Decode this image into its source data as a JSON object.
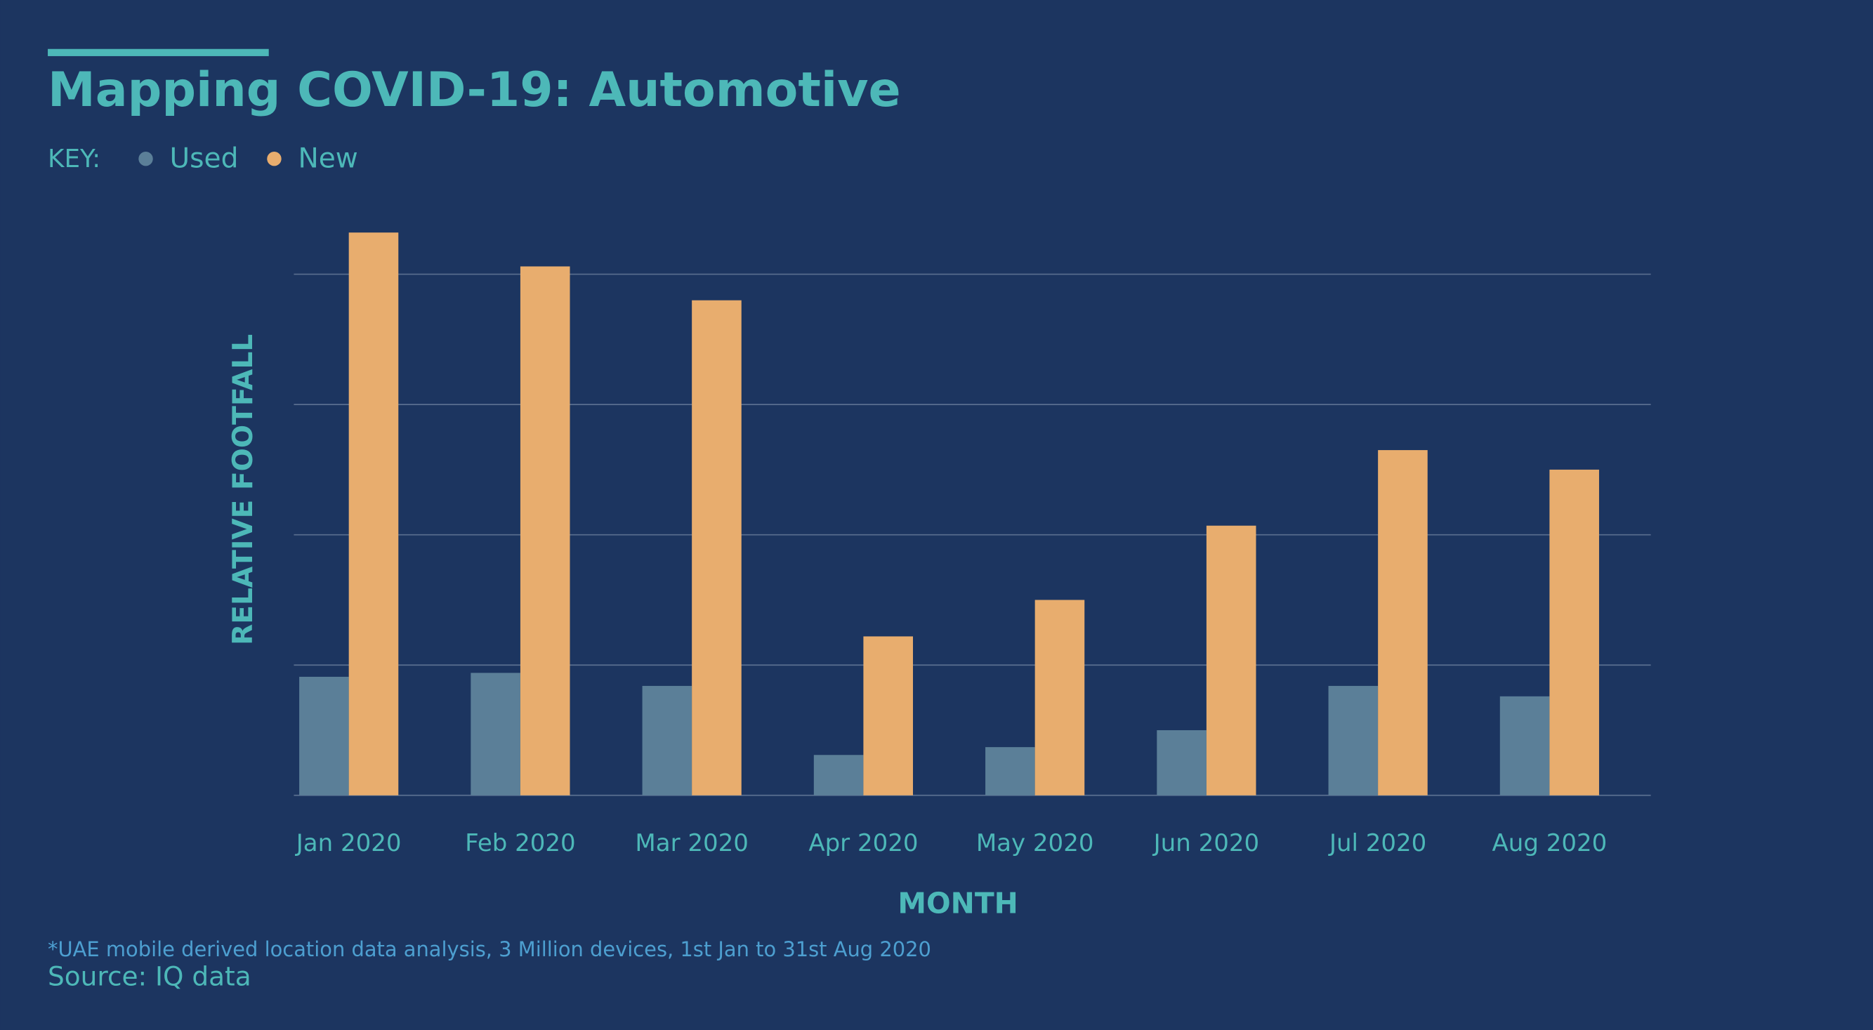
{
  "chart_data": {
    "type": "bar",
    "title": "Mapping COVID-19: Automotive",
    "legend_label": "KEY:",
    "categories": [
      "Jan 2020",
      "Feb 2020",
      "Mar 2020",
      "Apr 2020",
      "May 2020",
      "Jun 2020",
      "Jul 2020",
      "Aug 2020"
    ],
    "series": [
      {
        "name": "Used",
        "color": "#5b7f98",
        "values": [
          0.91,
          0.94,
          0.84,
          0.31,
          0.37,
          0.5,
          0.84,
          0.76
        ]
      },
      {
        "name": "New",
        "color": "#e8ad6e",
        "values": [
          4.32,
          4.06,
          3.8,
          1.22,
          1.5,
          2.07,
          2.65,
          2.5
        ]
      }
    ],
    "ylim": [
      0,
      4.4
    ],
    "yticks": [
      0,
      1,
      2,
      3,
      4
    ],
    "grid": true,
    "y_label": "RELATIVE FOOTFALL",
    "x_label": "MONTH",
    "footnote": "*UAE mobile derived location data analysis, 3 Million devices, 1st Jan to 31st Aug 2020",
    "source": "Source: IQ data"
  }
}
